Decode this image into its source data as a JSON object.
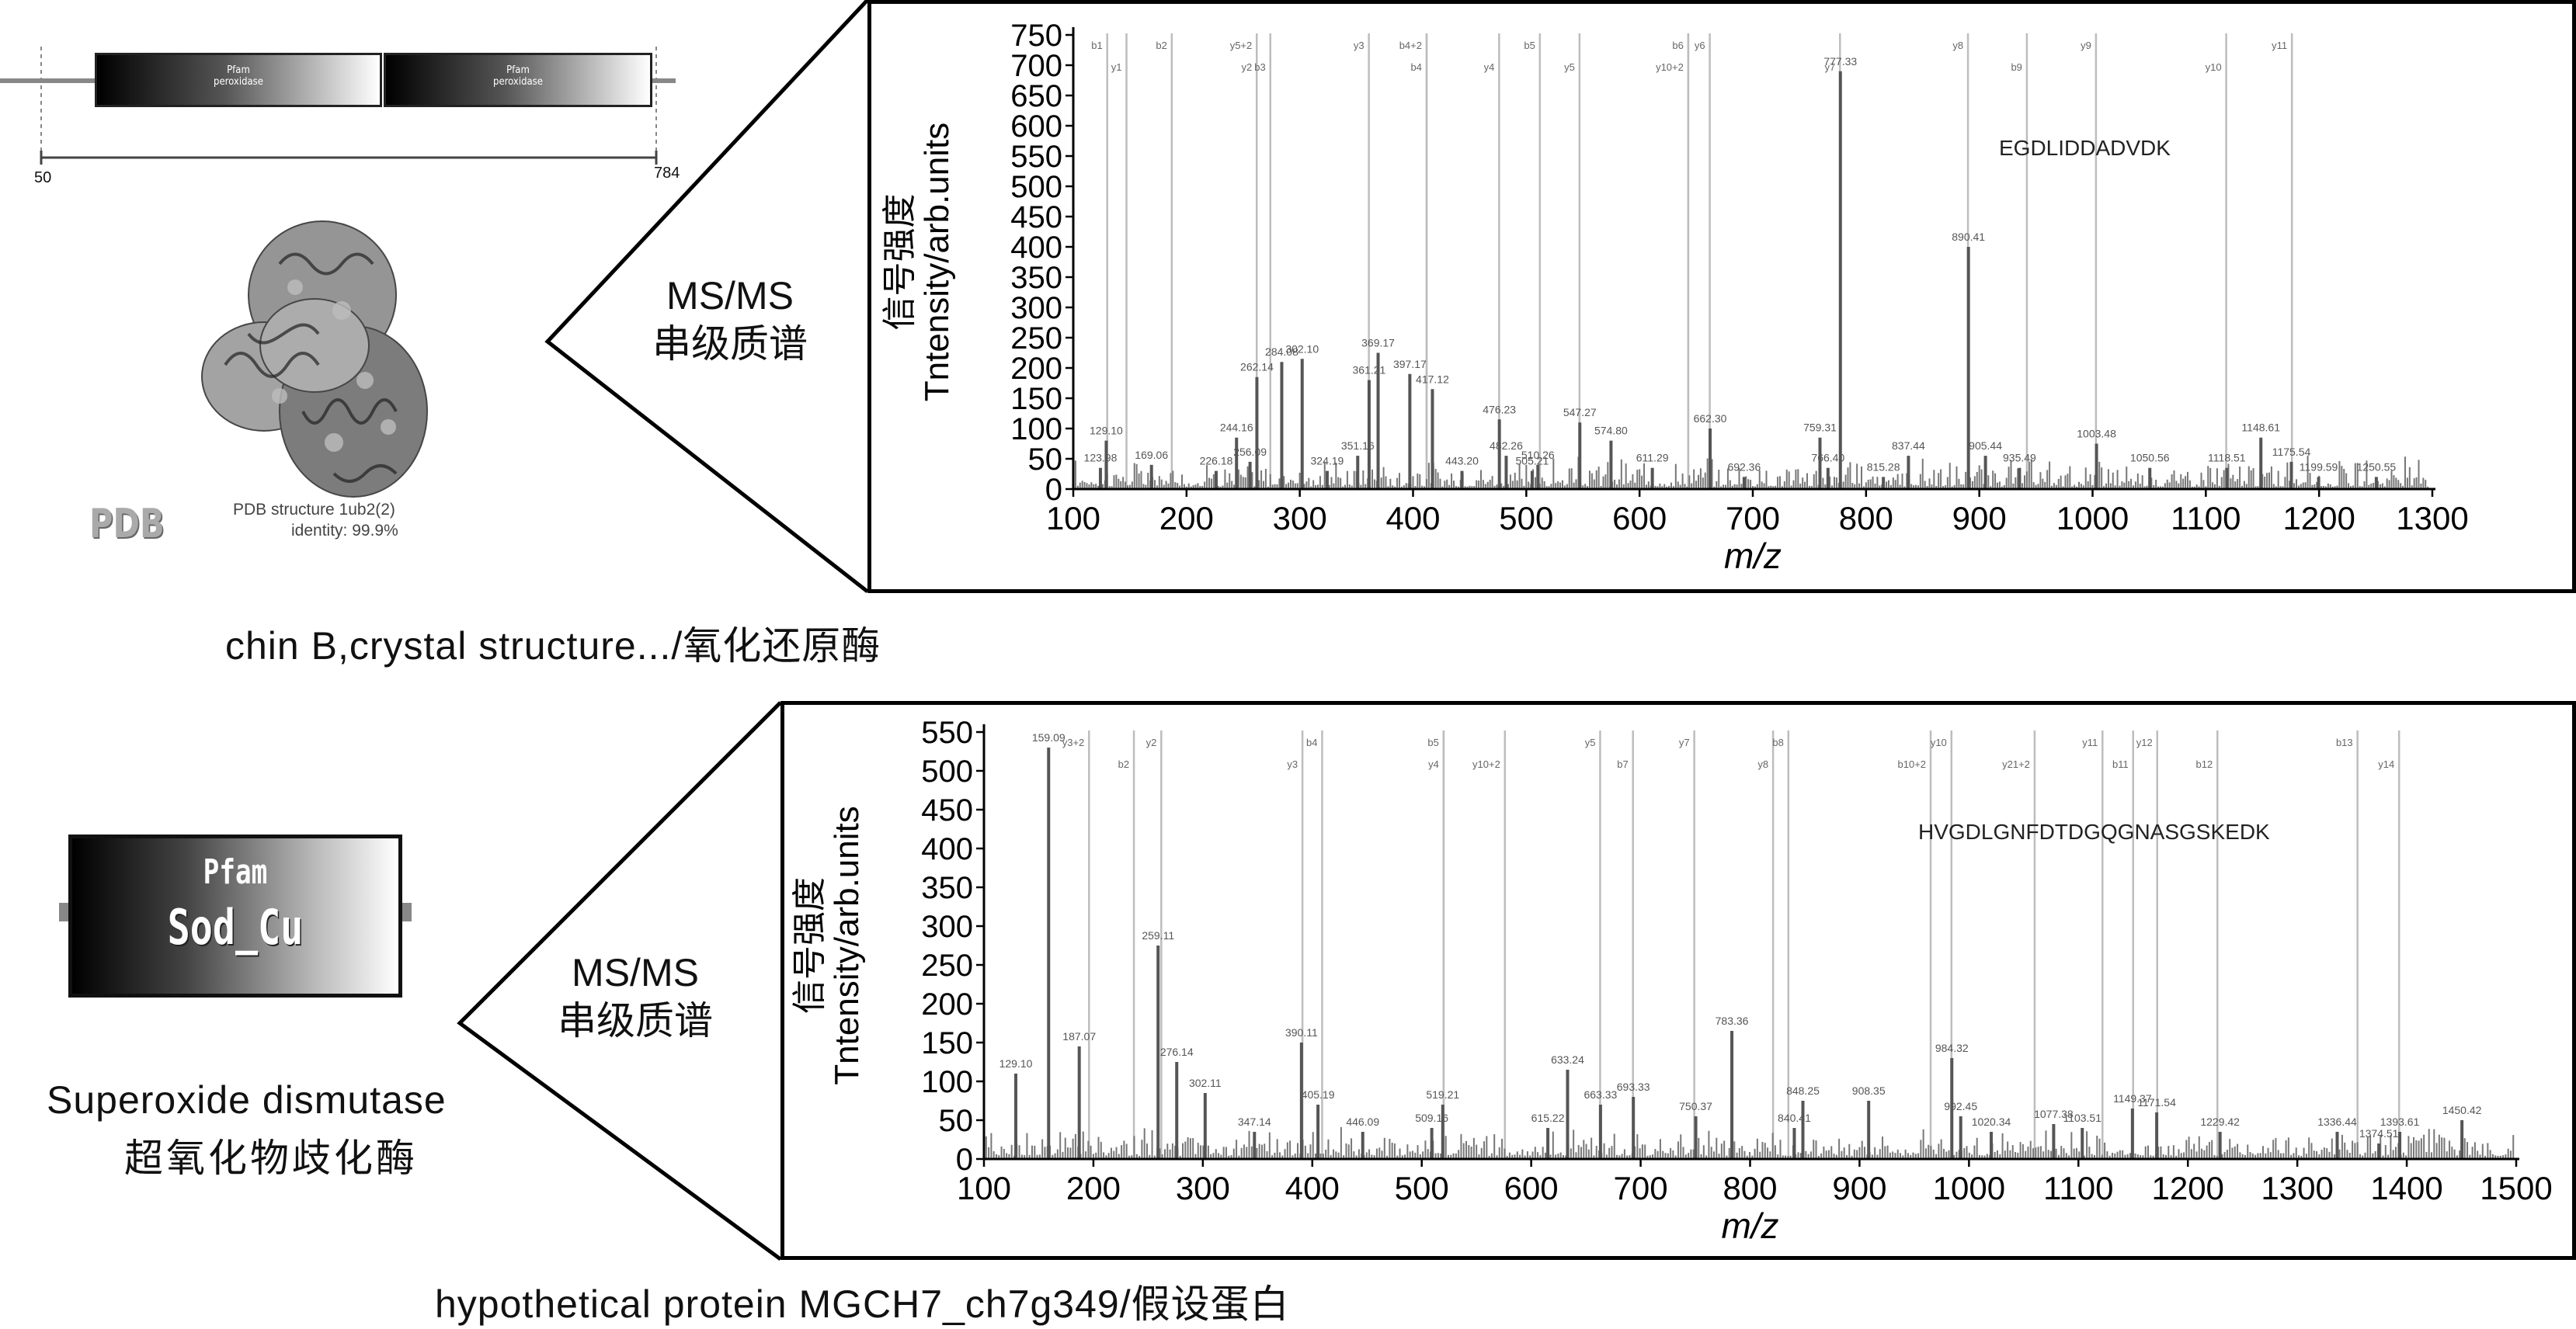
{
  "top_left": {
    "domain_diagram": {
      "domains": [
        {
          "pfam": "Pfam",
          "name": "peroxidase"
        },
        {
          "pfam": "Pfam",
          "name": "peroxidase"
        }
      ],
      "start": "50",
      "end": "784"
    },
    "structure": {
      "pdb_logo": "PDB",
      "line1": "PDB structure 1ub2(2)",
      "line2": "identity: 99.9%"
    },
    "caption": "chin B,crystal structure.../氧化还原酶"
  },
  "bottom_left": {
    "pfam": "Pfam",
    "domain": "Sod_Cu",
    "name_en": "Superoxide dismutase",
    "name_cn": "超氧化物歧化酶",
    "caption": "hypothetical protein MGCH7_ch7g349/假设蛋白"
  },
  "ms_label": {
    "line1": "MS/MS",
    "line2": "串级质谱"
  },
  "colors": {
    "frame": "#000000",
    "peak": "#555555",
    "ion_line": "#bdbdbd",
    "background": "#ffffff"
  },
  "chart_data": [
    {
      "type": "bar",
      "peptide": "EGDLIDDADVDK",
      "xlabel": "m/z",
      "ylabel": "信号强度\nTntensity/arb.units",
      "xlim": [
        100,
        1300
      ],
      "ylim": [
        0,
        750
      ],
      "xticks": [
        100,
        200,
        300,
        400,
        500,
        600,
        700,
        800,
        900,
        1000,
        1100,
        1200,
        1300
      ],
      "yticks": [
        0,
        50,
        100,
        150,
        200,
        250,
        300,
        350,
        400,
        450,
        500,
        550,
        600,
        650,
        700,
        750
      ],
      "ion_markers": [
        {
          "label": "b1",
          "mz": 130
        },
        {
          "label": "y1",
          "mz": 147
        },
        {
          "label": "b2",
          "mz": 187
        },
        {
          "label": "y2",
          "mz": 262
        },
        {
          "label": "y5+2",
          "mz": 262
        },
        {
          "label": "b3",
          "mz": 274
        },
        {
          "label": "y3",
          "mz": 361
        },
        {
          "label": "b4",
          "mz": 412
        },
        {
          "label": "b4+2",
          "mz": 412
        },
        {
          "label": "y4",
          "mz": 476
        },
        {
          "label": "b5",
          "mz": 512
        },
        {
          "label": "y5",
          "mz": 547
        },
        {
          "label": "b6",
          "mz": 643
        },
        {
          "label": "y10+2",
          "mz": 643
        },
        {
          "label": "y6",
          "mz": 662
        },
        {
          "label": "y7",
          "mz": 777
        },
        {
          "label": "y8",
          "mz": 890
        },
        {
          "label": "b9",
          "mz": 942
        },
        {
          "label": "y9",
          "mz": 1003
        },
        {
          "label": "y10",
          "mz": 1118
        },
        {
          "label": "y11",
          "mz": 1176
        }
      ],
      "labeled_peaks": [
        {
          "mz": 129.1,
          "intensity": 80
        },
        {
          "mz": 123.98,
          "intensity": 35
        },
        {
          "mz": 169.06,
          "intensity": 40
        },
        {
          "mz": 226.18,
          "intensity": 30
        },
        {
          "mz": 244.16,
          "intensity": 85
        },
        {
          "mz": 256.09,
          "intensity": 45
        },
        {
          "mz": 262.14,
          "intensity": 185
        },
        {
          "mz": 284.08,
          "intensity": 210
        },
        {
          "mz": 302.1,
          "intensity": 215
        },
        {
          "mz": 324.19,
          "intensity": 30
        },
        {
          "mz": 351.16,
          "intensity": 55
        },
        {
          "mz": 361.21,
          "intensity": 180
        },
        {
          "mz": 369.17,
          "intensity": 225
        },
        {
          "mz": 397.17,
          "intensity": 190
        },
        {
          "mz": 417.12,
          "intensity": 165
        },
        {
          "mz": 443.2,
          "intensity": 30
        },
        {
          "mz": 476.23,
          "intensity": 115
        },
        {
          "mz": 482.26,
          "intensity": 55
        },
        {
          "mz": 505.21,
          "intensity": 30
        },
        {
          "mz": 510.26,
          "intensity": 40
        },
        {
          "mz": 547.27,
          "intensity": 110
        },
        {
          "mz": 574.8,
          "intensity": 80
        },
        {
          "mz": 611.29,
          "intensity": 35
        },
        {
          "mz": 662.3,
          "intensity": 100
        },
        {
          "mz": 692.36,
          "intensity": 20
        },
        {
          "mz": 759.31,
          "intensity": 85
        },
        {
          "mz": 766.4,
          "intensity": 35
        },
        {
          "mz": 777.33,
          "intensity": 690
        },
        {
          "mz": 815.28,
          "intensity": 20
        },
        {
          "mz": 837.44,
          "intensity": 55
        },
        {
          "mz": 890.41,
          "intensity": 400
        },
        {
          "mz": 905.44,
          "intensity": 55
        },
        {
          "mz": 935.49,
          "intensity": 35
        },
        {
          "mz": 1003.48,
          "intensity": 75
        },
        {
          "mz": 1050.56,
          "intensity": 35
        },
        {
          "mz": 1118.51,
          "intensity": 35
        },
        {
          "mz": 1148.61,
          "intensity": 85
        },
        {
          "mz": 1175.54,
          "intensity": 45
        },
        {
          "mz": 1199.59,
          "intensity": 20
        },
        {
          "mz": 1250.55,
          "intensity": 20
        }
      ],
      "peak_labels": [
        {
          "text": "129.10",
          "mz": 129.1,
          "intensity": 80
        },
        {
          "text": "123.98",
          "mz": 123.98,
          "intensity": 35
        },
        {
          "text": "169.06",
          "mz": 169.06,
          "intensity": 40
        },
        {
          "text": "226.18",
          "mz": 226.18,
          "intensity": 30
        },
        {
          "text": "244.16",
          "mz": 244.16,
          "intensity": 85
        },
        {
          "text": "256.09",
          "mz": 256.09,
          "intensity": 45
        },
        {
          "text": "262.14",
          "mz": 262.14,
          "intensity": 185
        },
        {
          "text": "284.08",
          "mz": 284.08,
          "intensity": 210
        },
        {
          "text": "302.10",
          "mz": 302.1,
          "intensity": 215
        },
        {
          "text": "324.19",
          "mz": 324.19,
          "intensity": 30
        },
        {
          "text": "351.16",
          "mz": 351.16,
          "intensity": 55
        },
        {
          "text": "361.21",
          "mz": 361.21,
          "intensity": 180
        },
        {
          "text": "369.17",
          "mz": 369.17,
          "intensity": 225
        },
        {
          "text": "397.17",
          "mz": 397.17,
          "intensity": 190
        },
        {
          "text": "417.12",
          "mz": 417.12,
          "intensity": 165
        },
        {
          "text": "443.20",
          "mz": 443.2,
          "intensity": 30
        },
        {
          "text": "476.23",
          "mz": 476.23,
          "intensity": 115
        },
        {
          "text": "482.26",
          "mz": 482.26,
          "intensity": 55
        },
        {
          "text": "505.21",
          "mz": 505.21,
          "intensity": 30
        },
        {
          "text": "510.26",
          "mz": 510.26,
          "intensity": 40
        },
        {
          "text": "547.27",
          "mz": 547.27,
          "intensity": 110
        },
        {
          "text": "574.80",
          "mz": 574.8,
          "intensity": 80
        },
        {
          "text": "611.29",
          "mz": 611.29,
          "intensity": 35
        },
        {
          "text": "662.30",
          "mz": 662.3,
          "intensity": 100
        },
        {
          "text": "692.36",
          "mz": 692.36,
          "intensity": 20
        },
        {
          "text": "759.31",
          "mz": 759.31,
          "intensity": 85
        },
        {
          "text": "766.40",
          "mz": 766.4,
          "intensity": 35
        },
        {
          "text": "777.33",
          "mz": 777.33,
          "intensity": 690
        },
        {
          "text": "815.28",
          "mz": 815.28,
          "intensity": 20
        },
        {
          "text": "837.44",
          "mz": 837.44,
          "intensity": 55
        },
        {
          "text": "890.41",
          "mz": 890.41,
          "intensity": 400
        },
        {
          "text": "905.44",
          "mz": 905.44,
          "intensity": 55
        },
        {
          "text": "935.49",
          "mz": 935.49,
          "intensity": 35
        },
        {
          "text": "1003.48",
          "mz": 1003.48,
          "intensity": 75
        },
        {
          "text": "1050.56",
          "mz": 1050.56,
          "intensity": 35
        },
        {
          "text": "1118.51",
          "mz": 1118.51,
          "intensity": 35
        },
        {
          "text": "1148.61",
          "mz": 1148.61,
          "intensity": 85
        },
        {
          "text": "1175.54",
          "mz": 1175.54,
          "intensity": 45
        },
        {
          "text": "1199.59",
          "mz": 1199.59,
          "intensity": 20
        },
        {
          "text": "1250.55",
          "mz": 1250.55,
          "intensity": 20
        }
      ]
    },
    {
      "type": "bar",
      "peptide": "HVGDLGNFDTDGQGNASGSKEDK",
      "xlabel": "m/z",
      "ylabel": "信号强度\nTntensity/arb.units",
      "xlim": [
        100,
        1500
      ],
      "ylim": [
        0,
        550
      ],
      "xticks": [
        100,
        200,
        300,
        400,
        500,
        600,
        700,
        800,
        900,
        1000,
        1100,
        1200,
        1300,
        1400,
        1500
      ],
      "yticks": [
        0,
        50,
        100,
        150,
        200,
        250,
        300,
        350,
        400,
        450,
        500,
        550
      ],
      "ion_markers": [
        {
          "label": "y3+2",
          "mz": 196
        },
        {
          "label": "b2",
          "mz": 237
        },
        {
          "label": "y2",
          "mz": 262
        },
        {
          "label": "y3",
          "mz": 391
        },
        {
          "label": "b4",
          "mz": 409
        },
        {
          "label": "y4",
          "mz": 520
        },
        {
          "label": "b5",
          "mz": 520
        },
        {
          "label": "y10+2",
          "mz": 576
        },
        {
          "label": "y5",
          "mz": 663
        },
        {
          "label": "b7",
          "mz": 693
        },
        {
          "label": "y7",
          "mz": 749
        },
        {
          "label": "y8",
          "mz": 821
        },
        {
          "label": "b8",
          "mz": 835
        },
        {
          "label": "b10+2",
          "mz": 965
        },
        {
          "label": "y10",
          "mz": 984
        },
        {
          "label": "y21+2",
          "mz": 1060
        },
        {
          "label": "y11",
          "mz": 1122
        },
        {
          "label": "b11",
          "mz": 1150
        },
        {
          "label": "y12",
          "mz": 1172
        },
        {
          "label": "b12",
          "mz": 1227
        },
        {
          "label": "b13",
          "mz": 1355
        },
        {
          "label": "y14",
          "mz": 1393
        }
      ],
      "labeled_peaks": [
        {
          "mz": 129.1,
          "intensity": 110
        },
        {
          "mz": 159.09,
          "intensity": 530
        },
        {
          "mz": 187.07,
          "intensity": 145
        },
        {
          "mz": 259.11,
          "intensity": 275
        },
        {
          "mz": 276.14,
          "intensity": 125
        },
        {
          "mz": 302.11,
          "intensity": 85
        },
        {
          "mz": 347.14,
          "intensity": 35
        },
        {
          "mz": 390.11,
          "intensity": 150
        },
        {
          "mz": 405.19,
          "intensity": 70
        },
        {
          "mz": 446.09,
          "intensity": 35
        },
        {
          "mz": 509.16,
          "intensity": 40
        },
        {
          "mz": 519.21,
          "intensity": 70
        },
        {
          "mz": 615.22,
          "intensity": 40
        },
        {
          "mz": 633.24,
          "intensity": 115
        },
        {
          "mz": 663.33,
          "intensity": 70
        },
        {
          "mz": 693.33,
          "intensity": 80
        },
        {
          "mz": 750.37,
          "intensity": 55
        },
        {
          "mz": 783.36,
          "intensity": 165
        },
        {
          "mz": 840.41,
          "intensity": 40
        },
        {
          "mz": 848.25,
          "intensity": 75
        },
        {
          "mz": 908.35,
          "intensity": 75
        },
        {
          "mz": 984.32,
          "intensity": 130
        },
        {
          "mz": 992.45,
          "intensity": 55
        },
        {
          "mz": 1020.34,
          "intensity": 35
        },
        {
          "mz": 1077.38,
          "intensity": 45
        },
        {
          "mz": 1103.51,
          "intensity": 40
        },
        {
          "mz": 1149.37,
          "intensity": 65
        },
        {
          "mz": 1171.54,
          "intensity": 60
        },
        {
          "mz": 1229.42,
          "intensity": 35
        },
        {
          "mz": 1336.44,
          "intensity": 35
        },
        {
          "mz": 1374.51,
          "intensity": 20
        },
        {
          "mz": 1393.61,
          "intensity": 35
        },
        {
          "mz": 1450.42,
          "intensity": 50
        }
      ],
      "peak_labels": [
        {
          "text": "129.10",
          "mz": 129.1,
          "intensity": 110
        },
        {
          "text": "159.09",
          "mz": 159.09,
          "intensity": 530
        },
        {
          "text": "187.07",
          "mz": 187.07,
          "intensity": 145
        },
        {
          "text": "259.11",
          "mz": 259.11,
          "intensity": 275
        },
        {
          "text": "276.14",
          "mz": 276.14,
          "intensity": 125
        },
        {
          "text": "302.11",
          "mz": 302.11,
          "intensity": 85
        },
        {
          "text": "347.14",
          "mz": 347.14,
          "intensity": 35
        },
        {
          "text": "390.11",
          "mz": 390.11,
          "intensity": 150
        },
        {
          "text": "405.19",
          "mz": 405.19,
          "intensity": 70
        },
        {
          "text": "446.09",
          "mz": 446.09,
          "intensity": 35
        },
        {
          "text": "509.16",
          "mz": 509.16,
          "intensity": 40
        },
        {
          "text": "519.21",
          "mz": 519.21,
          "intensity": 70
        },
        {
          "text": "615.22",
          "mz": 615.22,
          "intensity": 40
        },
        {
          "text": "633.24",
          "mz": 633.24,
          "intensity": 115
        },
        {
          "text": "663.33",
          "mz": 663.33,
          "intensity": 70
        },
        {
          "text": "693.33",
          "mz": 693.33,
          "intensity": 80
        },
        {
          "text": "750.37",
          "mz": 750.37,
          "intensity": 55
        },
        {
          "text": "783.36",
          "mz": 783.36,
          "intensity": 165
        },
        {
          "text": "840.41",
          "mz": 840.41,
          "intensity": 40
        },
        {
          "text": "848.25",
          "mz": 848.25,
          "intensity": 75
        },
        {
          "text": "908.35",
          "mz": 908.35,
          "intensity": 75
        },
        {
          "text": "984.32",
          "mz": 984.32,
          "intensity": 130
        },
        {
          "text": "992.45",
          "mz": 992.45,
          "intensity": 55
        },
        {
          "text": "1020.34",
          "mz": 1020.34,
          "intensity": 35
        },
        {
          "text": "1077.38",
          "mz": 1077.38,
          "intensity": 45
        },
        {
          "text": "1103.51",
          "mz": 1103.51,
          "intensity": 40
        },
        {
          "text": "1149.37",
          "mz": 1149.37,
          "intensity": 65
        },
        {
          "text": "1171.54",
          "mz": 1171.54,
          "intensity": 60
        },
        {
          "text": "1229.42",
          "mz": 1229.42,
          "intensity": 35
        },
        {
          "text": "1336.44",
          "mz": 1336.44,
          "intensity": 35
        },
        {
          "text": "1374.51",
          "mz": 1374.51,
          "intensity": 20
        },
        {
          "text": "1393.61",
          "mz": 1393.61,
          "intensity": 35
        },
        {
          "text": "1450.42",
          "mz": 1450.42,
          "intensity": 50
        }
      ]
    }
  ]
}
